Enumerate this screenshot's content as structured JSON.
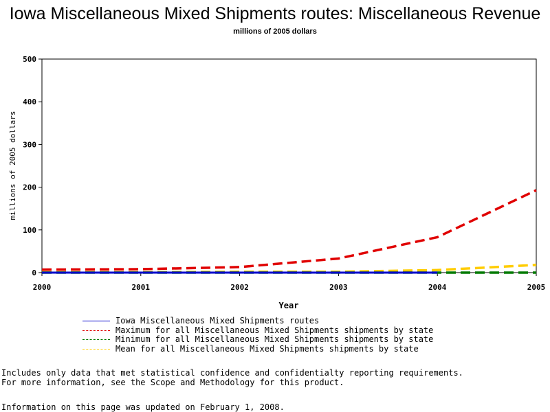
{
  "chart_data": {
    "type": "line",
    "title": "Iowa Miscellaneous Mixed Shipments routes: Miscellaneous Revenue",
    "subtitle": "millions of 2005 dollars",
    "xlabel": "Year",
    "ylabel": "millions of 2005 dollars",
    "x": [
      2000,
      2001,
      2002,
      2003,
      2004,
      2005
    ],
    "xlim": [
      2000,
      2005
    ],
    "ylim": [
      0,
      500
    ],
    "yticks": [
      0,
      100,
      200,
      300,
      400,
      500
    ],
    "grid": false,
    "legend_position": "bottom",
    "series": [
      {
        "name": "Iowa Miscellaneous Mixed Shipments routes",
        "color": "#0000cc",
        "style": "solid",
        "x": [
          2000,
          2001,
          2002,
          2003,
          2004
        ],
        "values": [
          0,
          0,
          0,
          0,
          0
        ]
      },
      {
        "name": "Maximum for all Miscellaneous Mixed Shipments shipments by state",
        "color": "#e00000",
        "style": "dashed",
        "x": [
          2000,
          2001,
          2002,
          2003,
          2004,
          2005
        ],
        "values": [
          7,
          8,
          13,
          33,
          83,
          193
        ]
      },
      {
        "name": "Minimum for all Miscellaneous Mixed Shipments shipments by state",
        "color": "#007a00",
        "style": "dashed",
        "x": [
          2000,
          2001,
          2002,
          2003,
          2004,
          2005
        ],
        "values": [
          0,
          0,
          0,
          0,
          0,
          0
        ]
      },
      {
        "name": "Mean for all Miscellaneous Mixed Shipments shipments by state",
        "color": "#ffcc00",
        "style": "dashed",
        "x": [
          2000,
          2001,
          2002,
          2003,
          2004,
          2005
        ],
        "values": [
          1,
          1,
          2,
          2,
          6,
          18
        ]
      }
    ]
  },
  "footer": {
    "notes": "Includes only data that met statistical confidence and confidentialty reporting requirements.\nFor more information, see the Scope and Methodology for this product.",
    "updated": "Information on this page was updated on February 1, 2008."
  }
}
